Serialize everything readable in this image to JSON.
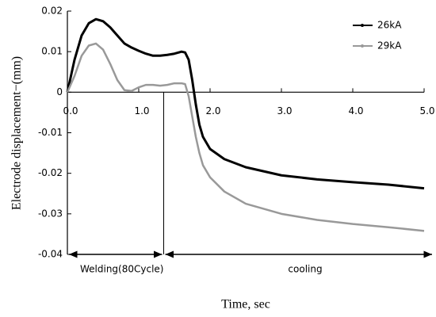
{
  "chart_data": {
    "type": "line",
    "xlabel": "Time, sec",
    "ylabel": "Electrode displacement−(mm)",
    "x": [
      0,
      0.1,
      0.2,
      0.3,
      0.4,
      0.5,
      0.6,
      0.7,
      0.8,
      0.9,
      1.0,
      1.1,
      1.2,
      1.3,
      1.4,
      1.5,
      1.6,
      1.65,
      1.7,
      1.75,
      1.8,
      1.85,
      1.9,
      2.0,
      2.2,
      2.5,
      3.0,
      3.5,
      4.0,
      4.5,
      5.0
    ],
    "series": [
      {
        "name": "26kA",
        "color": "#000000",
        "values": [
          0,
          0.008,
          0.014,
          0.017,
          0.018,
          0.0175,
          0.016,
          0.014,
          0.012,
          0.011,
          0.0102,
          0.0095,
          0.009,
          0.009,
          0.0092,
          0.0095,
          0.01,
          0.0098,
          0.008,
          0.003,
          -0.003,
          -0.008,
          -0.011,
          -0.014,
          -0.0165,
          -0.0185,
          -0.0205,
          -0.0215,
          -0.0222,
          -0.0228,
          -0.0237
        ]
      },
      {
        "name": "29kA",
        "color": "#999999",
        "values": [
          0,
          0.004,
          0.009,
          0.0115,
          0.012,
          0.0105,
          0.007,
          0.003,
          0.0005,
          0.0003,
          0.0012,
          0.0018,
          0.0018,
          0.0016,
          0.0018,
          0.0022,
          0.0022,
          0.002,
          -0.001,
          -0.006,
          -0.011,
          -0.015,
          -0.018,
          -0.021,
          -0.0245,
          -0.0275,
          -0.03,
          -0.0315,
          -0.0325,
          -0.0333,
          -0.0342
        ]
      }
    ],
    "xlim": [
      0,
      5
    ],
    "ylim": [
      -0.04,
      0.02
    ],
    "xticks": [
      {
        "value": 0,
        "label": "0.0"
      },
      {
        "value": 1,
        "label": "1.0"
      },
      {
        "value": 2,
        "label": "2.0"
      },
      {
        "value": 3,
        "label": "3.0"
      },
      {
        "value": 4,
        "label": "4.0"
      },
      {
        "value": 5,
        "label": "5.0"
      }
    ],
    "yticks": [
      0.02,
      0.01,
      0,
      -0.01,
      -0.02,
      -0.03,
      -0.04
    ],
    "welding_end": 1.35,
    "phase_labels": [
      "Welding(80Cycle)",
      "cooling"
    ],
    "legend": "upper right"
  }
}
